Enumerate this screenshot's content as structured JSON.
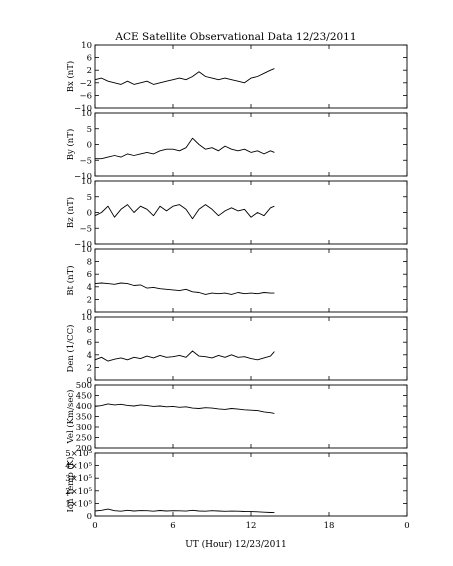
{
  "chart_data": {
    "type": "line",
    "title": "ACE Satellite Observational Data   12/23/2011",
    "xlabel": "UT (Hour)  12/23/2011",
    "x_range": [
      0,
      24
    ],
    "x_ticks": [
      "0",
      "6",
      "12",
      "18",
      "0"
    ],
    "data_end_hour": 13.8,
    "panels": [
      {
        "ylabel": "Bx (nT)",
        "ylim": [
          -10,
          10
        ],
        "ytick_labels": [
          "10",
          "6",
          "2",
          "−2",
          "−6",
          "−10"
        ],
        "series": [
          {
            "x": [
              0,
              0.5,
              1,
              1.5,
              2,
              2.5,
              3,
              3.5,
              4,
              4.5,
              5,
              5.5,
              6,
              6.5,
              7,
              7.5,
              8,
              8.5,
              9,
              9.5,
              10,
              10.5,
              11,
              11.5,
              12,
              12.5,
              13,
              13.5,
              13.8
            ],
            "y": [
              -1,
              -0.5,
              -1.5,
              -2,
              -2.5,
              -1.5,
              -2.5,
              -2,
              -1.5,
              -2.5,
              -2,
              -1.5,
              -1,
              -0.5,
              -1,
              0,
              1.5,
              0,
              -0.5,
              -1,
              -0.5,
              -1,
              -1.5,
              -2,
              -0.5,
              0,
              1,
              2,
              2.5
            ]
          }
        ]
      },
      {
        "ylabel": "By (nT)",
        "ylim": [
          -10,
          10
        ],
        "ytick_labels": [
          "10",
          "5",
          "0",
          "−5",
          "−10"
        ],
        "series": [
          {
            "x": [
              0,
              0.5,
              1,
              1.5,
              2,
              2.5,
              3,
              3.5,
              4,
              4.5,
              5,
              5.5,
              6,
              6.5,
              7,
              7.5,
              8,
              8.5,
              9,
              9.5,
              10,
              10.5,
              11,
              11.5,
              12,
              12.5,
              13,
              13.5,
              13.8
            ],
            "y": [
              -4.5,
              -4.5,
              -4,
              -3.5,
              -4,
              -3,
              -3.5,
              -3,
              -2.5,
              -3,
              -2,
              -1.5,
              -1.5,
              -2,
              -1,
              2,
              0,
              -1.5,
              -1,
              -2,
              -0.5,
              -1.5,
              -2,
              -1.5,
              -2.5,
              -2,
              -3,
              -2,
              -2.5
            ]
          }
        ]
      },
      {
        "ylabel": "Bz (nT)",
        "ylim": [
          -10,
          10
        ],
        "ytick_labels": [
          "10",
          "5",
          "0",
          "−5",
          "−10"
        ],
        "series": [
          {
            "x": [
              0,
              0.5,
              1,
              1.5,
              2,
              2.5,
              3,
              3.5,
              4,
              4.5,
              5,
              5.5,
              6,
              6.5,
              7,
              7.5,
              8,
              8.5,
              9,
              9.5,
              10,
              10.5,
              11,
              11.5,
              12,
              12.5,
              13,
              13.5,
              13.8
            ],
            "y": [
              -1,
              0,
              2,
              -1.5,
              1,
              2.5,
              0,
              2,
              1,
              -1,
              2,
              0.5,
              2,
              2.5,
              1,
              -2,
              1,
              2.5,
              1,
              -1,
              0.5,
              1.5,
              0.5,
              1,
              -1.5,
              0,
              -1,
              1.5,
              2
            ]
          }
        ]
      },
      {
        "ylabel": "Bt (nT)",
        "ylim": [
          0,
          10
        ],
        "ytick_labels": [
          "10",
          "8",
          "6",
          "4",
          "2",
          "0"
        ],
        "series": [
          {
            "x": [
              0,
              0.5,
              1,
              1.5,
              2,
              2.5,
              3,
              3.5,
              4,
              4.5,
              5,
              5.5,
              6,
              6.5,
              7,
              7.5,
              8,
              8.5,
              9,
              9.5,
              10,
              10.5,
              11,
              11.5,
              12,
              12.5,
              13,
              13.5,
              13.8
            ],
            "y": [
              4.5,
              4.6,
              4.5,
              4.4,
              4.6,
              4.5,
              4.2,
              4.3,
              3.8,
              3.9,
              3.7,
              3.6,
              3.5,
              3.4,
              3.6,
              3.2,
              3.1,
              2.8,
              3.0,
              2.9,
              3.0,
              2.8,
              3.1,
              2.9,
              3.0,
              2.9,
              3.1,
              3.0,
              3.0
            ]
          }
        ]
      },
      {
        "ylabel": "Den (1/CC)",
        "ylim": [
          0,
          10
        ],
        "ytick_labels": [
          "10",
          "8",
          "6",
          "4",
          "2",
          "0"
        ],
        "series": [
          {
            "x": [
              0,
              0.5,
              1,
              1.5,
              2,
              2.5,
              3,
              3.5,
              4,
              4.5,
              5,
              5.5,
              6,
              6.5,
              7,
              7.5,
              8,
              8.5,
              9,
              9.5,
              10,
              10.5,
              11,
              11.5,
              12,
              12.5,
              13,
              13.5,
              13.8
            ],
            "y": [
              3.2,
              3.6,
              3.0,
              3.3,
              3.5,
              3.2,
              3.6,
              3.4,
              3.8,
              3.5,
              3.9,
              3.6,
              3.7,
              3.9,
              3.6,
              4.6,
              3.8,
              3.7,
              3.5,
              3.9,
              3.6,
              4.0,
              3.6,
              3.7,
              3.4,
              3.2,
              3.5,
              3.8,
              4.5
            ]
          }
        ]
      },
      {
        "ylabel": "Vel (Km/sec)",
        "ylim": [
          200,
          500
        ],
        "ytick_labels": [
          "500",
          "450",
          "400",
          "350",
          "300",
          "250",
          "200"
        ],
        "series": [
          {
            "x": [
              0,
              0.5,
              1,
              1.5,
              2,
              2.5,
              3,
              3.5,
              4,
              4.5,
              5,
              5.5,
              6,
              6.5,
              7,
              7.5,
              8,
              8.5,
              9,
              9.5,
              10,
              10.5,
              11,
              11.5,
              12,
              12.5,
              13,
              13.5,
              13.8
            ],
            "y": [
              398,
              402,
              410,
              405,
              408,
              403,
              400,
              405,
              402,
              398,
              400,
              396,
              398,
              394,
              396,
              390,
              388,
              392,
              390,
              386,
              384,
              388,
              385,
              382,
              380,
              378,
              372,
              368,
              365
            ]
          }
        ]
      },
      {
        "ylabel": "Ion Temp (K)",
        "ylim": [
          0,
          500000
        ],
        "ytick_labels": [
          "5×10⁵",
          "4×10⁵",
          "3×10⁵",
          "2×10⁵",
          "1×10⁵",
          "0"
        ],
        "series": [
          {
            "x": [
              0,
              0.5,
              1,
              1.5,
              2,
              2.5,
              3,
              3.5,
              4,
              4.5,
              5,
              5.5,
              6,
              6.5,
              7,
              7.5,
              8,
              8.5,
              9,
              9.5,
              10,
              10.5,
              11,
              11.5,
              12,
              12.5,
              13,
              13.5,
              13.8
            ],
            "y": [
              40000,
              45000,
              55000,
              42000,
              38000,
              45000,
              40000,
              43000,
              42000,
              38000,
              44000,
              40000,
              42000,
              41000,
              39000,
              45000,
              40000,
              38000,
              42000,
              40000,
              37000,
              39000,
              38000,
              36000,
              35000,
              33000,
              30000,
              28000,
              27000
            ]
          }
        ]
      }
    ]
  }
}
